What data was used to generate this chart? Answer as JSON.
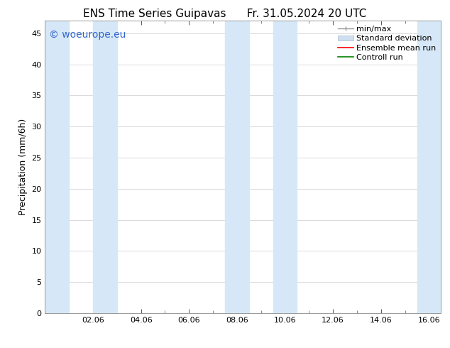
{
  "title_left": "ENS Time Series Guipavas",
  "title_right": "Fr. 31.05.2024 20 UTC",
  "ylabel": "Precipitation (mm/6h)",
  "xlabel": "",
  "ylim": [
    0,
    47
  ],
  "yticks": [
    0,
    5,
    10,
    15,
    20,
    25,
    30,
    35,
    40,
    45
  ],
  "xtick_labels": [
    "02.06",
    "04.06",
    "06.06",
    "08.06",
    "10.06",
    "12.06",
    "14.06",
    "16.06"
  ],
  "xtick_positions": [
    2,
    4,
    6,
    8,
    10,
    12,
    14,
    16
  ],
  "xlim": [
    0,
    16.5
  ],
  "background_color": "#ffffff",
  "plot_bg_color": "#ffffff",
  "shaded_bands": [
    {
      "x_start": 0.0,
      "x_end": 1.0
    },
    {
      "x_start": 2.0,
      "x_end": 3.0
    },
    {
      "x_start": 7.5,
      "x_end": 8.5
    },
    {
      "x_start": 9.5,
      "x_end": 10.5
    },
    {
      "x_start": 15.5,
      "x_end": 16.5
    }
  ],
  "shaded_color": "#d6e8f7",
  "shaded_alpha": 1.0,
  "watermark_text": "© woeurope.eu",
  "watermark_color": "#3366cc",
  "watermark_fontsize": 10,
  "legend_entries": [
    {
      "label": "min/max",
      "color": "#aaaaaa",
      "lw": 1.2,
      "type": "minmax"
    },
    {
      "label": "Standard deviation",
      "color": "#bbccdd",
      "lw": 6,
      "type": "band"
    },
    {
      "label": "Ensemble mean run",
      "color": "#ff0000",
      "lw": 1.2,
      "type": "line"
    },
    {
      "label": "Controll run",
      "color": "#008000",
      "lw": 1.2,
      "type": "line"
    }
  ],
  "title_fontsize": 11,
  "axis_label_fontsize": 9,
  "tick_fontsize": 8,
  "legend_fontsize": 8,
  "grid_color": "#cccccc",
  "border_color": "#999999",
  "tick_color": "#555555"
}
